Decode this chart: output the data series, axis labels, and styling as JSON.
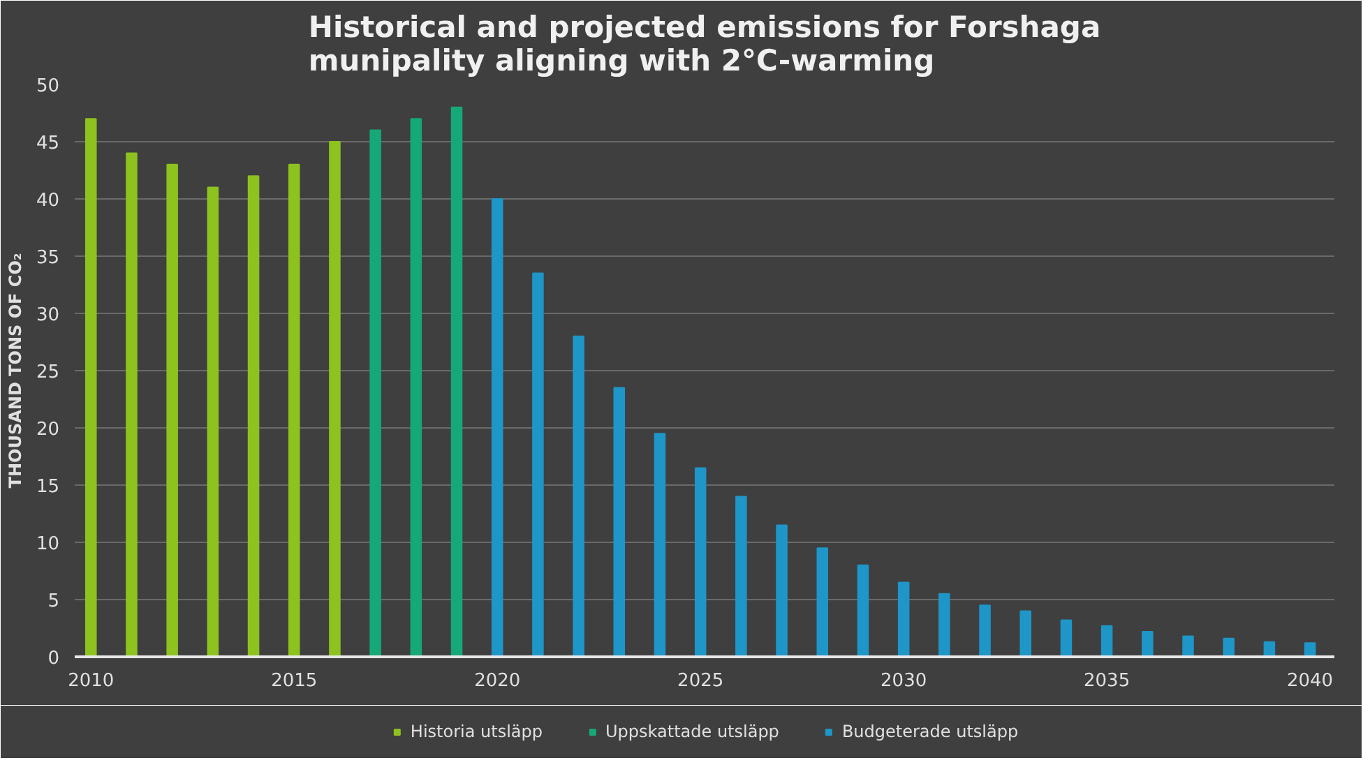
{
  "chart_data": {
    "type": "bar",
    "title": "Historical and projected emissions for Forshaga\nmunipality aligning with 2°C-warming",
    "ylabel": "THOUSAND TONS OF CO₂",
    "xlim": [
      2009.6,
      2040.6
    ],
    "xticks": [
      2010,
      2015,
      2020,
      2025,
      2030,
      2035,
      2040
    ],
    "ylim": [
      0,
      50
    ],
    "yticks": [
      0,
      5,
      10,
      15,
      20,
      25,
      30,
      35,
      40,
      45,
      50
    ],
    "grid": "y",
    "legend": "bottom",
    "series": [
      {
        "name": "Historia utsläpp",
        "color": "#8dc21f",
        "x": [
          2010,
          2011,
          2012,
          2013,
          2014,
          2015,
          2016
        ],
        "values": [
          47,
          44,
          43,
          41,
          42,
          43,
          45
        ]
      },
      {
        "name": "Uppskattade utsläpp",
        "color": "#16a878",
        "x": [
          2017,
          2018,
          2019
        ],
        "values": [
          46,
          47,
          48
        ]
      },
      {
        "name": "Budgeterade utsläpp",
        "color": "#1e96c8",
        "x": [
          2020,
          2021,
          2022,
          2023,
          2024,
          2025,
          2026,
          2027,
          2028,
          2029,
          2030,
          2031,
          2032,
          2033,
          2034,
          2035,
          2036,
          2037,
          2038,
          2039,
          2040
        ],
        "values": [
          40,
          33.5,
          28,
          23.5,
          19.5,
          16.5,
          14,
          11.5,
          9.5,
          8,
          6.5,
          5.5,
          4.5,
          4,
          3.2,
          2.7,
          2.2,
          1.8,
          1.6,
          1.3,
          1.2
        ]
      }
    ]
  }
}
